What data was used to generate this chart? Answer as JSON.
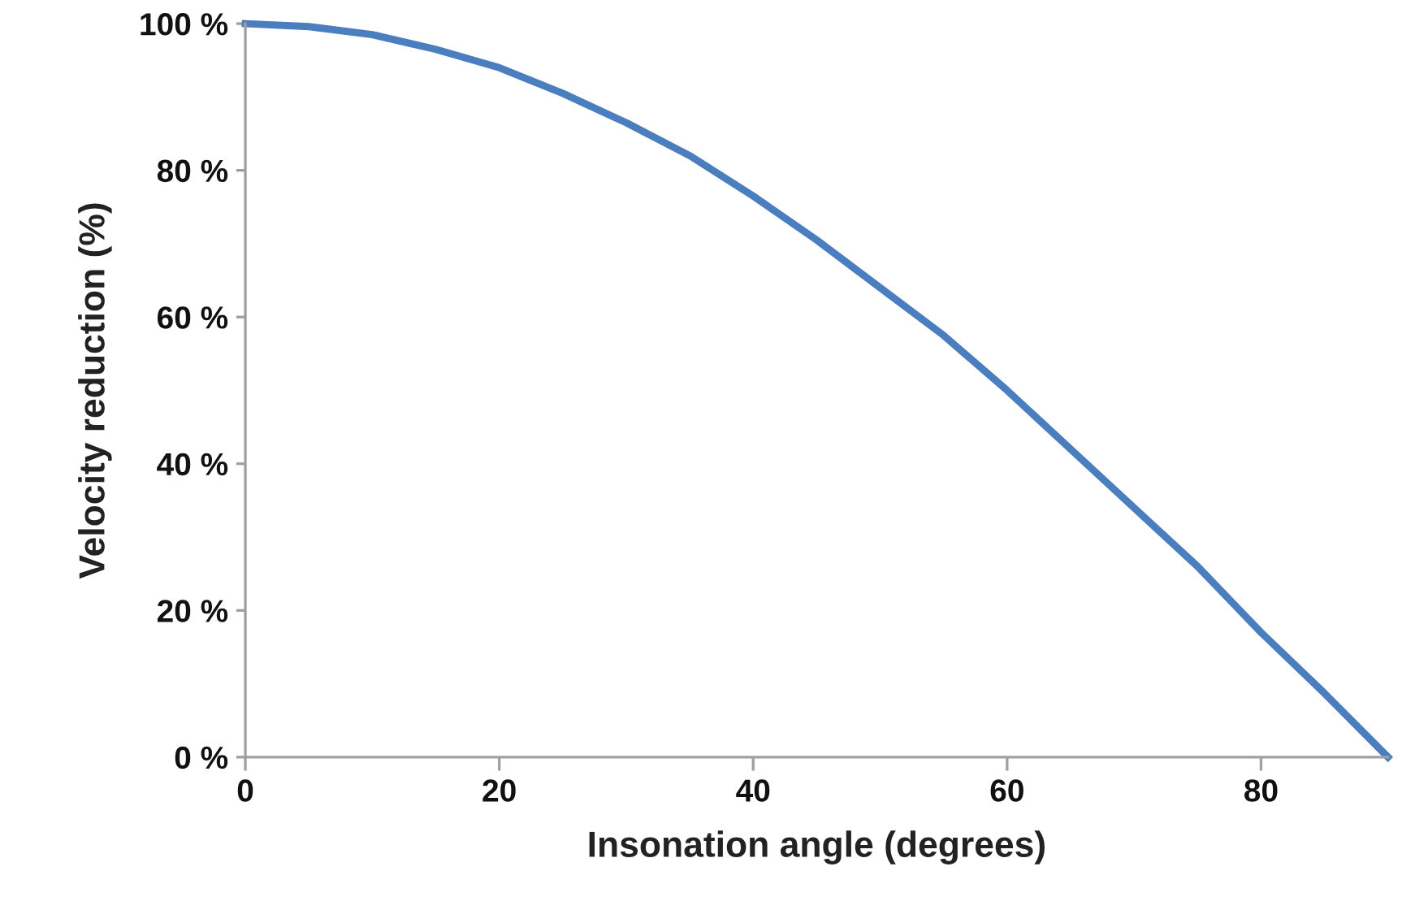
{
  "chart_data": {
    "type": "line",
    "xlabel": "Insonation angle (degrees)",
    "ylabel": "Velocity reduction (%)",
    "x": [
      0,
      5,
      10,
      15,
      20,
      25,
      30,
      35,
      40,
      45,
      50,
      55,
      60,
      65,
      70,
      75,
      80,
      85,
      90
    ],
    "series": [
      {
        "color": "#4a7ebf",
        "values": [
          100,
          99.6,
          98.5,
          96.5,
          94,
          90.5,
          86.5,
          82,
          76.5,
          70.5,
          64,
          57.5,
          50,
          42,
          34,
          26,
          17,
          8.7,
          0
        ]
      }
    ],
    "xlim": [
      0,
      90
    ],
    "ylim": [
      0,
      100
    ],
    "xticks": [
      0,
      20,
      40,
      60,
      80
    ],
    "yticks": [
      {
        "value": 0,
        "label": "0 %"
      },
      {
        "value": 20,
        "label": "20 %"
      },
      {
        "value": 40,
        "label": "40 %"
      },
      {
        "value": 60,
        "label": "60 %"
      },
      {
        "value": 80,
        "label": "80 %"
      },
      {
        "value": 100,
        "label": "100 %"
      }
    ],
    "grid": false,
    "marker": "none",
    "line_style": "solid"
  }
}
